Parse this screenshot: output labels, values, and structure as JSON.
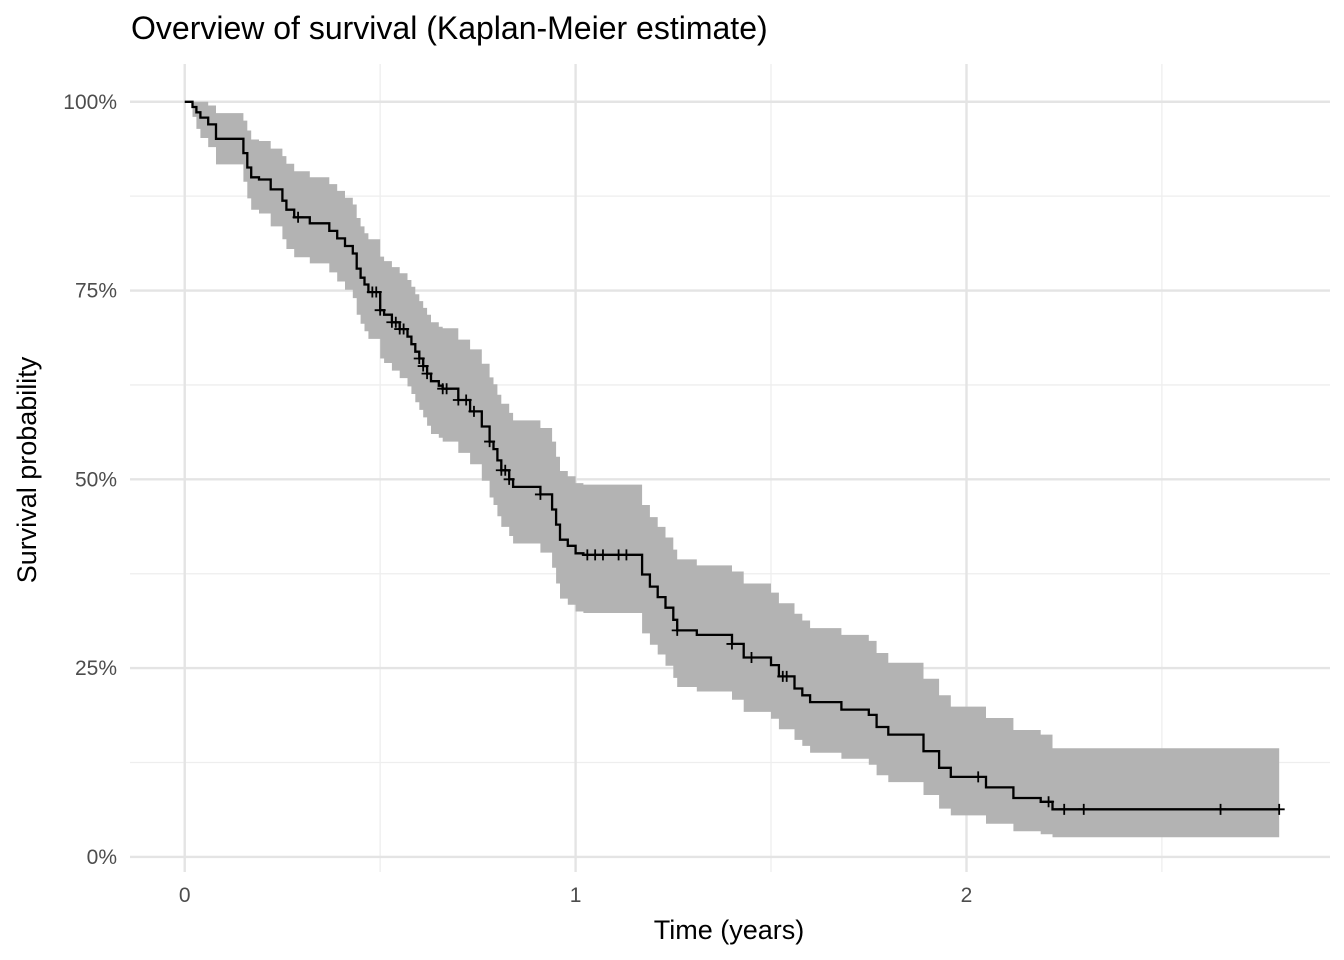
{
  "chart_data": {
    "type": "line",
    "title": "Overview of survival (Kaplan-Meier estimate)",
    "xlabel": "Time (years)",
    "ylabel": "Survival probability",
    "xlim": [
      -0.14,
      2.93
    ],
    "ylim": [
      -0.02,
      1.05
    ],
    "x_ticks": [
      0,
      1,
      2
    ],
    "x_tick_labels": [
      "0",
      "1",
      "2"
    ],
    "x_minor_ticks": [
      0.5,
      1.5,
      2.5
    ],
    "y_ticks": [
      0,
      0.25,
      0.5,
      0.75,
      1
    ],
    "y_tick_labels": [
      "0%",
      "25%",
      "50%",
      "75%",
      "100%"
    ],
    "y_minor_ticks": [
      0.125,
      0.375,
      0.625,
      0.875
    ],
    "grid": true,
    "colors": {
      "line": "#000000",
      "band": "#b3b3b3",
      "grid_major": "#e4e4e4",
      "grid_minor": "#eeeeee",
      "tick_text": "#4d4d4d"
    },
    "series": [
      {
        "x": [
          0,
          0.02,
          0.03,
          0.04,
          0.06,
          0.08,
          0.12,
          0.15,
          0.16,
          0.17,
          0.19,
          0.22,
          0.25,
          0.26,
          0.28,
          0.32,
          0.37,
          0.39,
          0.41,
          0.43,
          0.44,
          0.45,
          0.46,
          0.47,
          0.5,
          0.51,
          0.53,
          0.55,
          0.57,
          0.58,
          0.59,
          0.6,
          0.61,
          0.62,
          0.63,
          0.65,
          0.66,
          0.7,
          0.73,
          0.76,
          0.78,
          0.79,
          0.8,
          0.81,
          0.83,
          0.84,
          0.87,
          0.91,
          0.94,
          0.95,
          0.96,
          0.98,
          1.0,
          1.02,
          1.17,
          1.19,
          1.21,
          1.23,
          1.25,
          1.26,
          1.31,
          1.4,
          1.43,
          1.5,
          1.52,
          1.56,
          1.58,
          1.6,
          1.68,
          1.75,
          1.77,
          1.8,
          1.89,
          1.93,
          1.96,
          2.05,
          2.12,
          2.19,
          2.22,
          2.25
        ],
        "surv": [
          1,
          0.993,
          0.986,
          0.979,
          0.97,
          0.951,
          0.951,
          0.932,
          0.913,
          0.9,
          0.897,
          0.884,
          0.869,
          0.857,
          0.847,
          0.839,
          0.829,
          0.819,
          0.809,
          0.799,
          0.779,
          0.767,
          0.758,
          0.748,
          0.724,
          0.718,
          0.708,
          0.699,
          0.689,
          0.679,
          0.669,
          0.66,
          0.65,
          0.64,
          0.63,
          0.624,
          0.62,
          0.605,
          0.59,
          0.57,
          0.55,
          0.54,
          0.525,
          0.512,
          0.5,
          0.49,
          0.49,
          0.48,
          0.46,
          0.44,
          0.42,
          0.412,
          0.402,
          0.4,
          0.374,
          0.358,
          0.344,
          0.33,
          0.314,
          0.3,
          0.294,
          0.282,
          0.264,
          0.254,
          0.239,
          0.223,
          0.214,
          0.205,
          0.195,
          0.188,
          0.172,
          0.162,
          0.14,
          0.118,
          0.106,
          0.092,
          0.078,
          0.073,
          0.063,
          0.063
        ],
        "lower": [
          1,
          0.98,
          0.964,
          0.952,
          0.94,
          0.917,
          0.917,
          0.894,
          0.872,
          0.857,
          0.852,
          0.835,
          0.818,
          0.805,
          0.794,
          0.786,
          0.774,
          0.762,
          0.751,
          0.74,
          0.718,
          0.706,
          0.696,
          0.686,
          0.66,
          0.654,
          0.644,
          0.634,
          0.623,
          0.613,
          0.602,
          0.592,
          0.582,
          0.571,
          0.56,
          0.555,
          0.55,
          0.535,
          0.52,
          0.498,
          0.476,
          0.466,
          0.451,
          0.437,
          0.425,
          0.415,
          0.415,
          0.403,
          0.383,
          0.362,
          0.342,
          0.334,
          0.325,
          0.323,
          0.296,
          0.281,
          0.268,
          0.253,
          0.237,
          0.225,
          0.219,
          0.208,
          0.192,
          0.183,
          0.169,
          0.155,
          0.147,
          0.138,
          0.13,
          0.122,
          0.108,
          0.099,
          0.082,
          0.064,
          0.055,
          0.044,
          0.034,
          0.03,
          0.026,
          0.026
        ],
        "upper": [
          1,
          1,
          1,
          1,
          0.995,
          0.985,
          0.985,
          0.975,
          0.962,
          0.95,
          0.948,
          0.938,
          0.928,
          0.918,
          0.908,
          0.9,
          0.891,
          0.882,
          0.873,
          0.864,
          0.846,
          0.835,
          0.826,
          0.818,
          0.795,
          0.789,
          0.781,
          0.773,
          0.764,
          0.755,
          0.745,
          0.736,
          0.727,
          0.718,
          0.708,
          0.702,
          0.7,
          0.685,
          0.672,
          0.653,
          0.635,
          0.626,
          0.612,
          0.6,
          0.588,
          0.578,
          0.578,
          0.568,
          0.55,
          0.53,
          0.511,
          0.504,
          0.495,
          0.493,
          0.466,
          0.45,
          0.437,
          0.423,
          0.407,
          0.394,
          0.386,
          0.378,
          0.362,
          0.35,
          0.336,
          0.322,
          0.313,
          0.303,
          0.294,
          0.286,
          0.27,
          0.257,
          0.236,
          0.214,
          0.199,
          0.184,
          0.168,
          0.162,
          0.144,
          0.144
        ],
        "end_x": 2.8,
        "censor_x": [
          0.29,
          0.48,
          0.49,
          0.5,
          0.53,
          0.54,
          0.55,
          0.56,
          0.6,
          0.61,
          0.62,
          0.66,
          0.67,
          0.7,
          0.72,
          0.74,
          0.78,
          0.81,
          0.82,
          0.83,
          0.91,
          1.03,
          1.05,
          1.07,
          1.11,
          1.13,
          1.26,
          1.4,
          1.45,
          1.53,
          1.54,
          2.03,
          2.21,
          2.25,
          2.3,
          2.65,
          2.8
        ]
      }
    ]
  }
}
